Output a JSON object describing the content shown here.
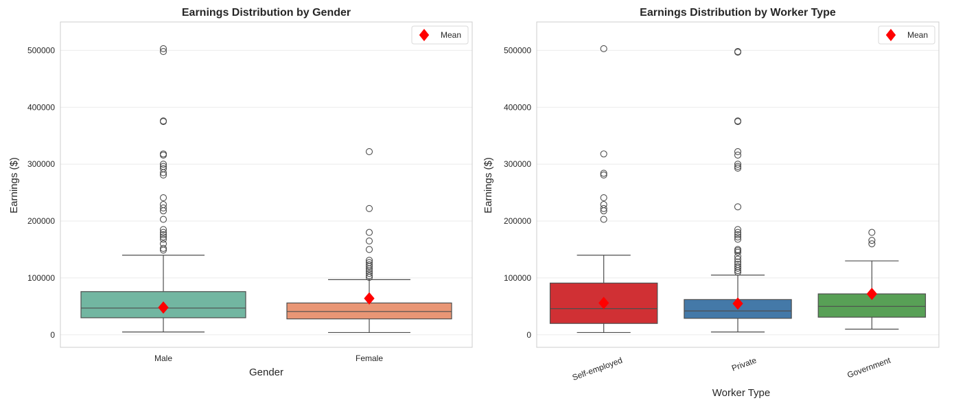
{
  "chart_data": [
    {
      "type": "box",
      "title": "Earnings Distribution by Gender",
      "xlabel": "Gender",
      "ylabel": "Earnings ($)",
      "ylim": [
        -22000,
        550000
      ],
      "yticks": [
        0,
        100000,
        200000,
        300000,
        400000,
        500000
      ],
      "ytick_labels": [
        "0",
        "100000",
        "200000",
        "300000",
        "400000",
        "500000"
      ],
      "grid": true,
      "legend": {
        "label": "Mean",
        "placement": "top-right",
        "marker": "diamond",
        "color": "#ff0000"
      },
      "categories": [
        "Male",
        "Female"
      ],
      "colors": [
        "#72b6a1",
        "#e99675"
      ],
      "boxes": [
        {
          "name": "Male",
          "whislo": 5000,
          "q1": 30000,
          "median": 47000,
          "q3": 76000,
          "whishi": 140000,
          "mean": 48000,
          "fliers": [
            503000,
            498000,
            376000,
            375000,
            318000,
            316000,
            300000,
            296000,
            292000,
            285000,
            281000,
            241000,
            229000,
            223000,
            218000,
            203000,
            185000,
            180000,
            176000,
            172000,
            168000,
            160000,
            152000,
            149000
          ]
        },
        {
          "name": "Female",
          "whislo": 4000,
          "q1": 28000,
          "median": 41000,
          "q3": 56000,
          "whishi": 97000,
          "mean": 64000,
          "fliers": [
            322000,
            222000,
            180000,
            165000,
            150000,
            131000,
            127000,
            123000,
            120000,
            116000,
            112000,
            108000,
            104000,
            101000
          ]
        }
      ]
    },
    {
      "type": "box",
      "title": "Earnings Distribution by Worker Type",
      "xlabel": "Worker Type",
      "ylabel": "Earnings ($)",
      "ylim": [
        -22000,
        550000
      ],
      "yticks": [
        0,
        100000,
        200000,
        300000,
        400000,
        500000
      ],
      "ytick_labels": [
        "0",
        "100000",
        "200000",
        "300000",
        "400000",
        "500000"
      ],
      "grid": true,
      "legend": {
        "label": "Mean",
        "placement": "top-right",
        "marker": "diamond",
        "color": "#ff0000"
      },
      "categories": [
        "Self-employed",
        "Private",
        "Government"
      ],
      "colors": [
        "#d03034",
        "#4479a8",
        "#58a056"
      ],
      "boxes": [
        {
          "name": "Self-employed",
          "whislo": 4000,
          "q1": 20000,
          "median": 46000,
          "q3": 91000,
          "whishi": 140000,
          "mean": 56000,
          "fliers": [
            503000,
            318000,
            284000,
            281000,
            241000,
            229000,
            222000,
            218000,
            203000
          ]
        },
        {
          "name": "Private",
          "whislo": 5000,
          "q1": 29000,
          "median": 42000,
          "q3": 62000,
          "whishi": 105000,
          "mean": 55000,
          "fliers": [
            498000,
            497000,
            376000,
            375000,
            322000,
            316000,
            300000,
            296000,
            293000,
            225000,
            185000,
            180000,
            176000,
            172000,
            168000,
            150000,
            148000,
            145000,
            138000,
            133000,
            128000,
            124000,
            120000,
            117000,
            113000,
            110000
          ]
        },
        {
          "name": "Government",
          "whislo": 10000,
          "q1": 31000,
          "median": 50000,
          "q3": 72000,
          "whishi": 130000,
          "mean": 72000,
          "fliers": [
            180000,
            166000,
            160000
          ]
        }
      ]
    }
  ]
}
